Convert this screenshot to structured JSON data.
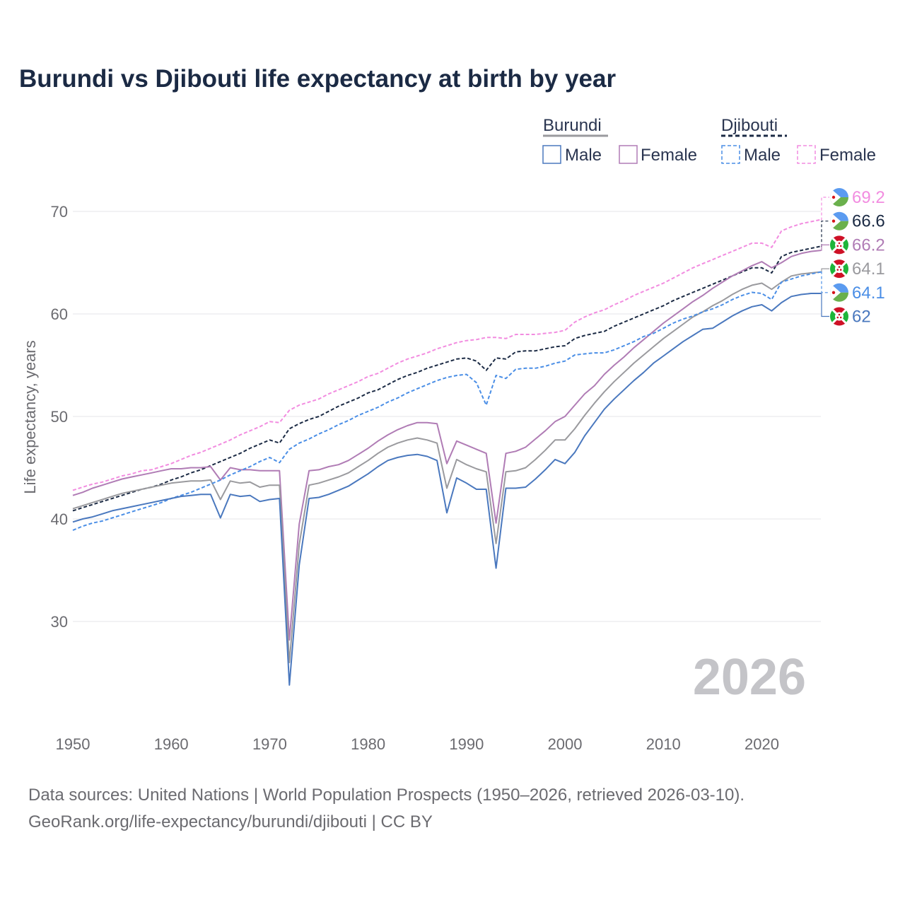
{
  "title": "Burundi vs Djibouti life expectancy at birth by year",
  "year_watermark": "2026",
  "source_line1": "Data sources: United Nations | World Population Prospects (1950–2026, retrieved 2026-03-10).",
  "source_line2": "GeoRank.org/life-expectancy/burundi/djibouti | CC BY",
  "legend": {
    "group1": "Burundi",
    "group2": "Djibouti",
    "male": "Male",
    "female": "Female"
  },
  "chart_data": {
    "type": "line",
    "title": "Burundi vs Djibouti life expectancy at birth by year",
    "xlabel": "",
    "ylabel": "Life expectancy, years",
    "xlim": [
      1950,
      2026
    ],
    "ylim": [
      20,
      74
    ],
    "x_ticks": [
      1950,
      1960,
      1970,
      1980,
      1990,
      2000,
      2010,
      2020
    ],
    "y_ticks": [
      30,
      40,
      50,
      60,
      70
    ],
    "x": [
      1950,
      1951,
      1952,
      1953,
      1954,
      1955,
      1956,
      1957,
      1958,
      1959,
      1960,
      1961,
      1962,
      1963,
      1964,
      1965,
      1966,
      1967,
      1968,
      1969,
      1970,
      1971,
      1972,
      1973,
      1974,
      1975,
      1976,
      1977,
      1978,
      1979,
      1980,
      1981,
      1982,
      1983,
      1984,
      1985,
      1986,
      1987,
      1988,
      1989,
      1990,
      1991,
      1992,
      1993,
      1994,
      1995,
      1996,
      1997,
      1998,
      1999,
      2000,
      2001,
      2002,
      2003,
      2004,
      2005,
      2006,
      2007,
      2008,
      2009,
      2010,
      2011,
      2012,
      2013,
      2014,
      2015,
      2016,
      2017,
      2018,
      2019,
      2020,
      2021,
      2022,
      2023,
      2024,
      2025,
      2026
    ],
    "series": [
      {
        "name": "Djibouti Female",
        "country": "Djibouti",
        "sex": "Female",
        "color": "#f28ce0",
        "dashed": true,
        "end_label": "69.2",
        "values": [
          42.8,
          43.1,
          43.4,
          43.6,
          43.9,
          44.2,
          44.4,
          44.7,
          44.8,
          45.1,
          45.4,
          45.8,
          46.2,
          46.5,
          46.9,
          47.3,
          47.7,
          48.2,
          48.6,
          49.0,
          49.5,
          49.4,
          50.6,
          51.1,
          51.4,
          51.7,
          52.2,
          52.6,
          53.0,
          53.4,
          53.9,
          54.2,
          54.7,
          55.2,
          55.6,
          55.9,
          56.2,
          56.6,
          56.9,
          57.2,
          57.4,
          57.5,
          57.7,
          57.7,
          57.6,
          58.0,
          58.0,
          58.0,
          58.1,
          58.2,
          58.4,
          59.2,
          59.7,
          60.1,
          60.4,
          60.9,
          61.3,
          61.8,
          62.2,
          62.6,
          63.0,
          63.5,
          64.0,
          64.5,
          64.9,
          65.3,
          65.7,
          66.1,
          66.5,
          66.9,
          66.9,
          66.5,
          68.1,
          68.5,
          68.8,
          69.0,
          69.2
        ]
      },
      {
        "name": "Djibouti Total",
        "country": "Djibouti",
        "sex": "Total",
        "color": "#1b2a44",
        "dashed": true,
        "end_label": "66.6",
        "values": [
          40.8,
          41.1,
          41.4,
          41.7,
          42.0,
          42.3,
          42.6,
          42.9,
          43.1,
          43.4,
          43.8,
          44.1,
          44.5,
          44.8,
          45.2,
          45.6,
          46.0,
          46.4,
          46.9,
          47.3,
          47.7,
          47.4,
          48.8,
          49.3,
          49.7,
          50.0,
          50.5,
          51.0,
          51.4,
          51.8,
          52.3,
          52.6,
          53.1,
          53.6,
          54.0,
          54.3,
          54.7,
          55.0,
          55.3,
          55.6,
          55.7,
          55.4,
          54.5,
          55.7,
          55.6,
          56.3,
          56.4,
          56.4,
          56.6,
          56.8,
          56.9,
          57.6,
          57.9,
          58.1,
          58.3,
          58.8,
          59.2,
          59.6,
          60.0,
          60.4,
          60.8,
          61.3,
          61.7,
          62.1,
          62.5,
          62.9,
          63.3,
          63.7,
          64.1,
          64.5,
          64.5,
          64.0,
          65.6,
          66.0,
          66.2,
          66.4,
          66.6
        ]
      },
      {
        "name": "Burundi Female",
        "country": "Burundi",
        "sex": "Female",
        "color": "#b07cb5",
        "dashed": false,
        "end_label": "66.2",
        "values": [
          42.3,
          42.6,
          43.0,
          43.3,
          43.6,
          43.9,
          44.1,
          44.3,
          44.5,
          44.7,
          44.9,
          44.9,
          45.0,
          45.0,
          45.1,
          43.8,
          45.0,
          44.8,
          44.8,
          44.7,
          44.7,
          44.7,
          28.2,
          39.5,
          44.7,
          44.8,
          45.1,
          45.3,
          45.7,
          46.3,
          46.9,
          47.6,
          48.2,
          48.7,
          49.1,
          49.4,
          49.4,
          49.3,
          45.4,
          47.6,
          47.2,
          46.8,
          46.4,
          39.6,
          46.4,
          46.6,
          47.0,
          47.8,
          48.6,
          49.5,
          50.0,
          51.1,
          52.2,
          53.0,
          54.1,
          55.0,
          55.8,
          56.7,
          57.5,
          58.3,
          59.1,
          59.8,
          60.5,
          61.2,
          61.8,
          62.5,
          63.1,
          63.7,
          64.2,
          64.7,
          65.1,
          64.5,
          65.0,
          65.6,
          65.9,
          66.1,
          66.2
        ]
      },
      {
        "name": "Burundi Total",
        "country": "Burundi",
        "sex": "Total",
        "color": "#9a9a9e",
        "dashed": false,
        "end_label": "64.1",
        "values": [
          41.0,
          41.3,
          41.6,
          41.9,
          42.2,
          42.5,
          42.7,
          42.9,
          43.1,
          43.3,
          43.5,
          43.6,
          43.7,
          43.7,
          43.8,
          41.9,
          43.7,
          43.5,
          43.6,
          43.1,
          43.3,
          43.3,
          26.0,
          37.5,
          43.3,
          43.5,
          43.8,
          44.1,
          44.5,
          45.1,
          45.7,
          46.4,
          47.0,
          47.4,
          47.7,
          47.9,
          47.7,
          47.4,
          43.0,
          45.8,
          45.3,
          44.9,
          44.6,
          37.6,
          44.6,
          44.7,
          45.0,
          45.8,
          46.7,
          47.7,
          47.7,
          48.8,
          50.1,
          51.3,
          52.4,
          53.4,
          54.3,
          55.2,
          56.0,
          56.8,
          57.6,
          58.3,
          59.0,
          59.7,
          60.2,
          60.8,
          61.3,
          61.9,
          62.4,
          62.8,
          63.0,
          62.4,
          63.1,
          63.7,
          63.9,
          64.0,
          64.1
        ]
      },
      {
        "name": "Djibouti Male",
        "country": "Djibouti",
        "sex": "Male",
        "color": "#4a8ee6",
        "dashed": true,
        "end_label": "64.1",
        "values": [
          38.9,
          39.3,
          39.6,
          39.8,
          40.1,
          40.4,
          40.7,
          41.0,
          41.3,
          41.6,
          42.0,
          42.3,
          42.6,
          43.0,
          43.4,
          43.8,
          44.3,
          44.7,
          45.1,
          45.6,
          46.0,
          45.5,
          46.8,
          47.4,
          47.8,
          48.3,
          48.7,
          49.2,
          49.6,
          50.1,
          50.5,
          50.9,
          51.4,
          51.8,
          52.3,
          52.7,
          53.1,
          53.5,
          53.8,
          54.0,
          54.1,
          53.3,
          51.1,
          54.0,
          53.7,
          54.6,
          54.7,
          54.7,
          54.9,
          55.2,
          55.4,
          56.0,
          56.1,
          56.2,
          56.2,
          56.5,
          56.9,
          57.3,
          57.8,
          58.1,
          58.6,
          59.1,
          59.5,
          59.8,
          60.2,
          60.5,
          60.9,
          61.4,
          61.8,
          62.1,
          62.0,
          61.4,
          63.1,
          63.4,
          63.7,
          63.9,
          64.1
        ]
      },
      {
        "name": "Burundi Male",
        "country": "Burundi",
        "sex": "Male",
        "color": "#4a78be",
        "dashed": false,
        "end_label": "62",
        "values": [
          39.7,
          40.0,
          40.2,
          40.5,
          40.8,
          41.0,
          41.2,
          41.4,
          41.6,
          41.8,
          42.0,
          42.2,
          42.3,
          42.4,
          42.4,
          40.1,
          42.4,
          42.2,
          42.3,
          41.7,
          41.9,
          42.0,
          23.8,
          35.5,
          42.0,
          42.1,
          42.4,
          42.8,
          43.2,
          43.8,
          44.4,
          45.1,
          45.7,
          46.0,
          46.2,
          46.3,
          46.1,
          45.7,
          40.6,
          44.0,
          43.5,
          42.9,
          42.9,
          35.2,
          43.0,
          43.0,
          43.1,
          43.9,
          44.8,
          45.8,
          45.4,
          46.5,
          48.1,
          49.4,
          50.7,
          51.7,
          52.6,
          53.5,
          54.3,
          55.2,
          55.9,
          56.6,
          57.3,
          57.9,
          58.5,
          58.6,
          59.2,
          59.8,
          60.3,
          60.7,
          60.9,
          60.3,
          61.1,
          61.7,
          61.9,
          62.0,
          62.0
        ]
      }
    ]
  },
  "icons": {
    "burundi": "burundi-flag-icon",
    "djibouti": "djibouti-flag-icon"
  }
}
